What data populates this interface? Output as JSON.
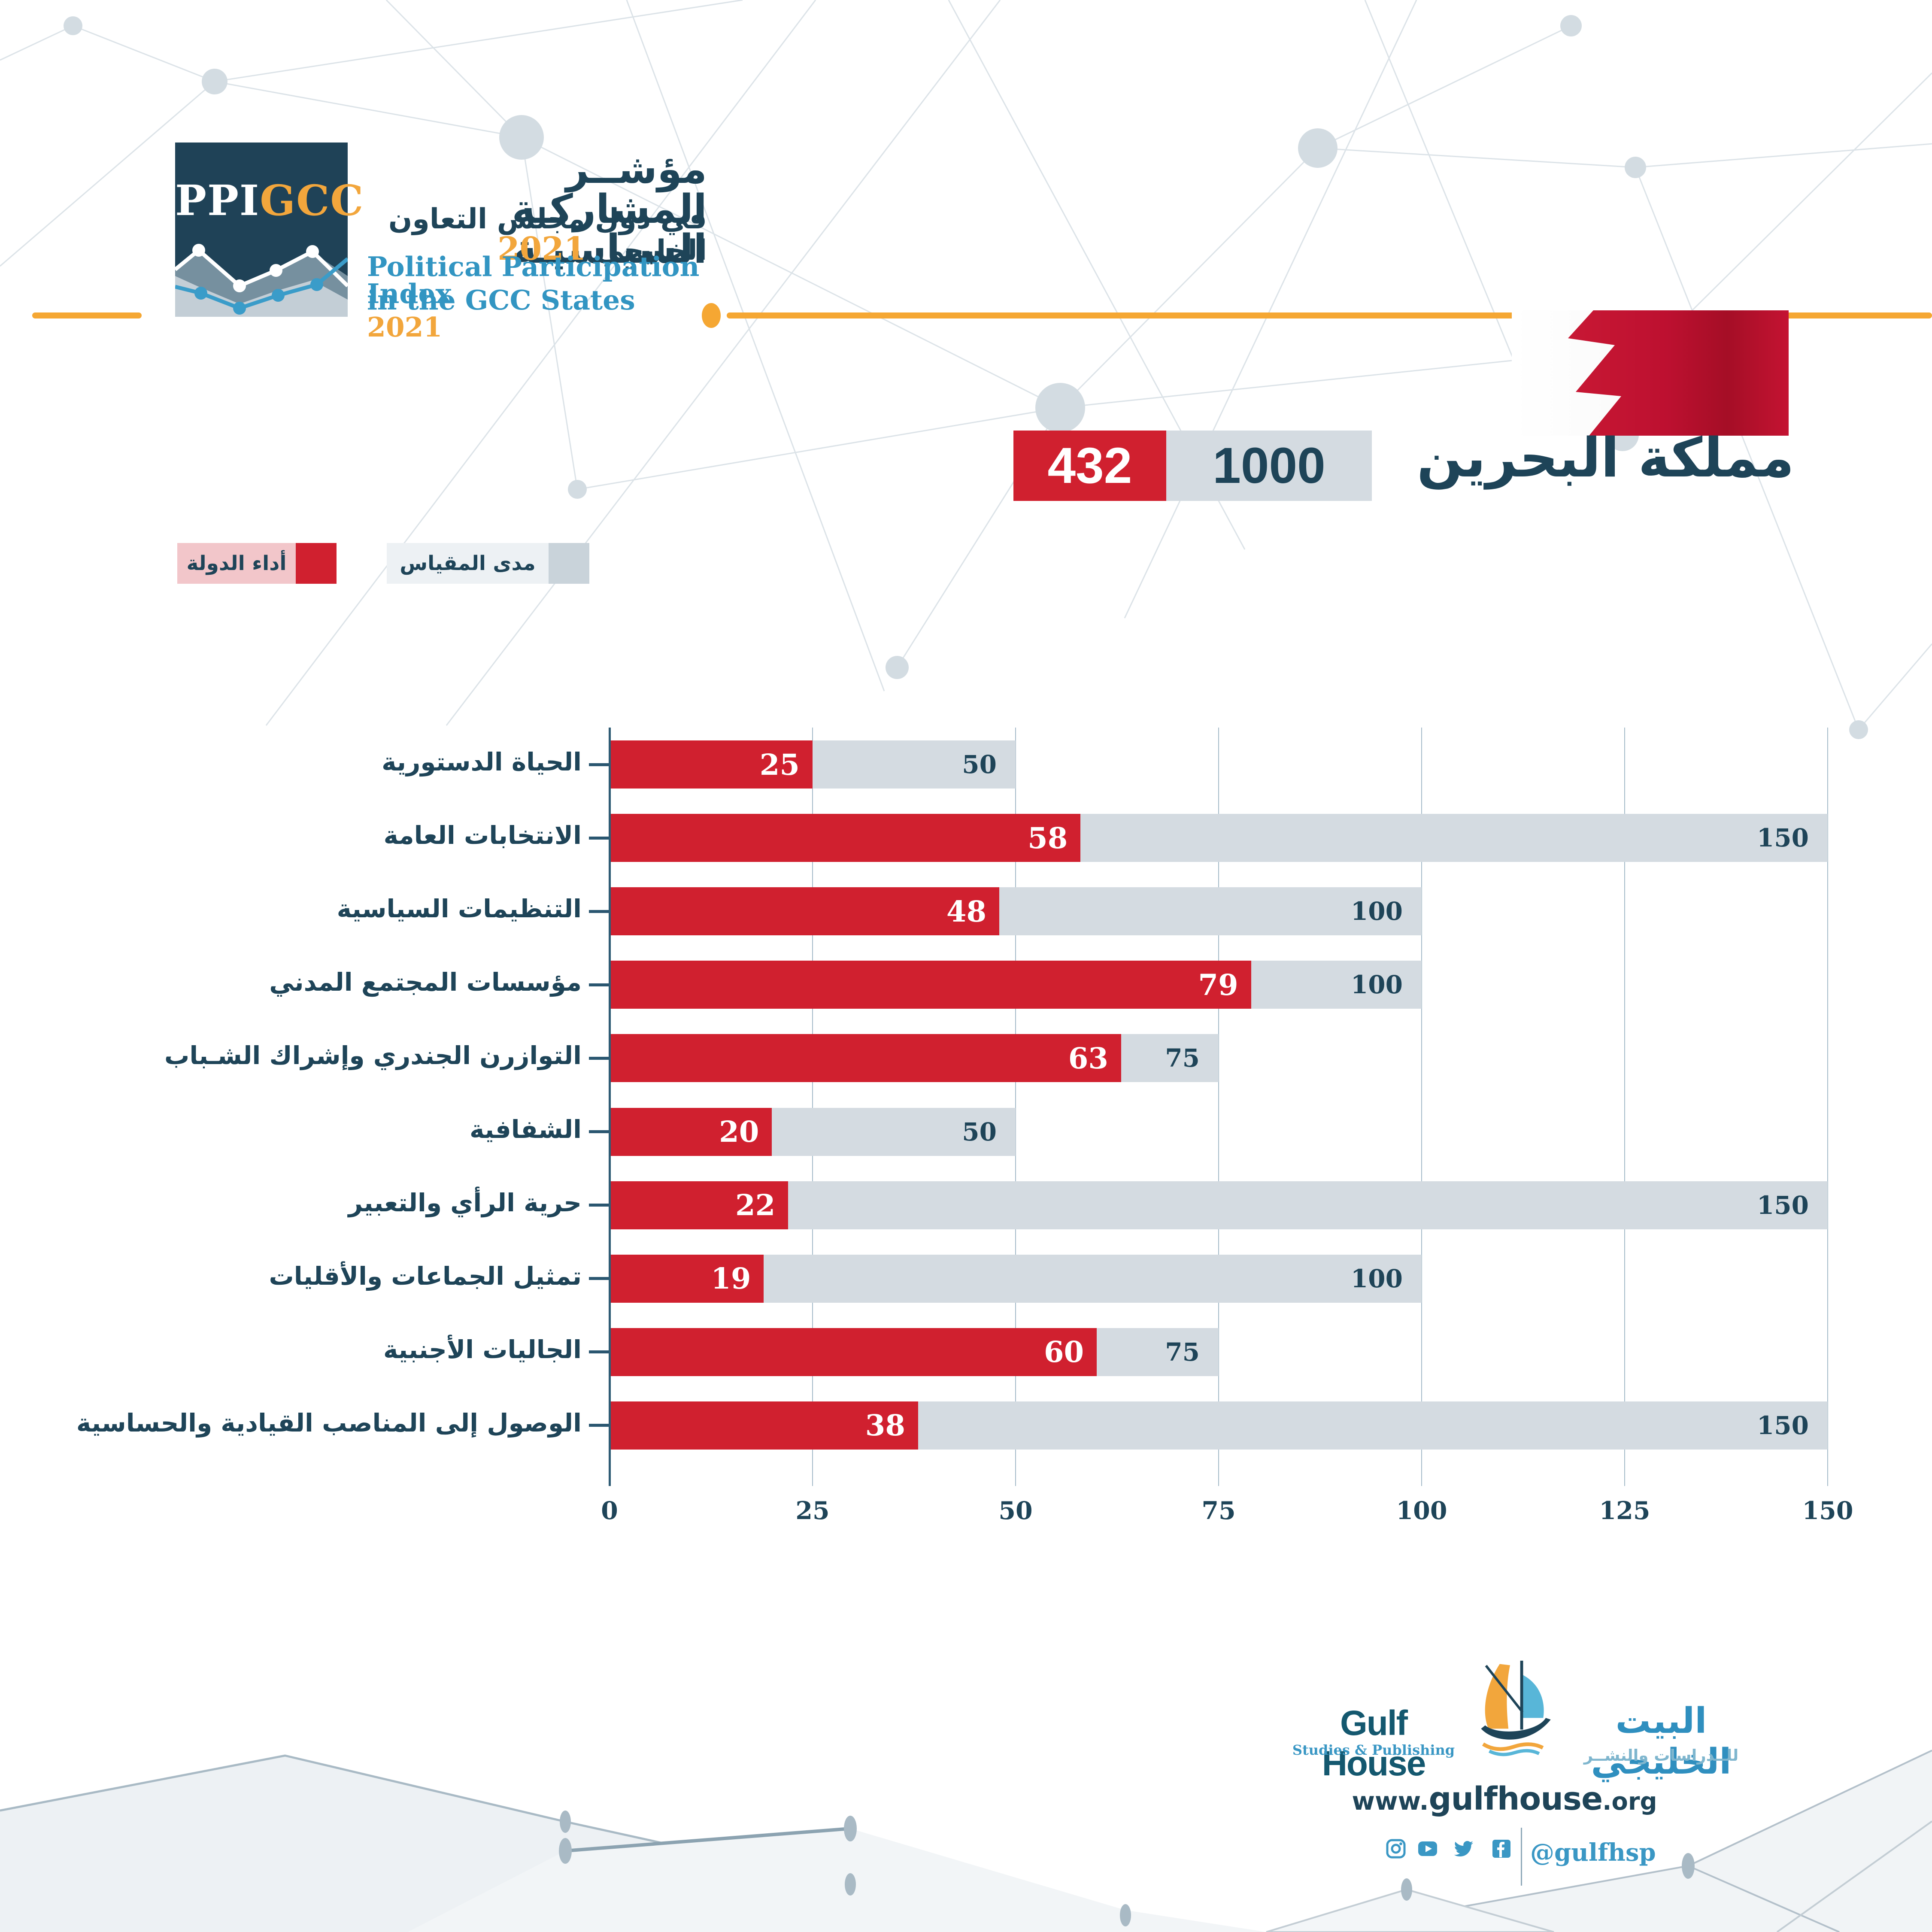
{
  "header": {
    "logo_ppi": "PPI",
    "logo_gcc": "GCC",
    "title_ar_line1": "مؤشــر المشاركـة السياسيـة",
    "title_ar_line2": "في دول مجلس التعاون الخليجي",
    "title_ar_year": "2021",
    "title_en_line1": "Political Participation Index",
    "title_en_line2": "in the GCC States",
    "title_en_year": "2021"
  },
  "country": {
    "name": "مملكة البحرين",
    "score": "432",
    "scale": "1000"
  },
  "legend": {
    "performance": "أداء الدولة",
    "scale": "مدى المقياس"
  },
  "chart_data": {
    "type": "bar",
    "orientation": "horizontal",
    "title": "مملكة البحرين — Political Participation Index 2021",
    "categories": [
      "الحياة الدستورية",
      "الانتخابات العامة",
      "التنظيمات السياسية",
      "مؤسسات المجتمع المدني",
      "التوازرن الجندري وإشراك الشـباب",
      "الشفافية",
      "حرية الرأي والتعبير",
      "تمثيل الجماعات والأقليات",
      "الجاليات الأجنبية",
      "الوصول إلى المناصب القيادية والحساسية"
    ],
    "series": [
      {
        "name": "أداء الدولة",
        "color": "#D0202F",
        "values": [
          25,
          58,
          48,
          79,
          63,
          20,
          22,
          19,
          60,
          38
        ]
      },
      {
        "name": "مدى المقياس",
        "color": "#D4DBE1",
        "values": [
          50,
          150,
          100,
          100,
          75,
          50,
          150,
          100,
          75,
          150
        ]
      }
    ],
    "xlabel": "",
    "ylabel": "",
    "xlim": [
      0,
      150
    ],
    "x_ticks": [
      0,
      25,
      50,
      75,
      100,
      125,
      150
    ],
    "grid": "vertical",
    "value_labels": "inside-end",
    "legend_position": "top-left"
  },
  "colors": {
    "red": "#D0202F",
    "gray_bar": "#D4DBE1",
    "navy": "#1E4458",
    "blue": "#3295C2",
    "orange": "#F5A733",
    "legend_pink": "#F2C6CA",
    "legend_gray_box": "#EDF1F4",
    "legend_gray_swatch": "#C9D3DA"
  },
  "footer": {
    "brand_en": "Gulf House",
    "brand_sub_en": "Studies & Publishing",
    "brand_ar": "البيت الخليجي",
    "brand_sub_ar": "للــدراسات والنشــر",
    "site_www": "www.",
    "site_name": "gulfhouse",
    "site_tld": ".org",
    "handle": "@gulfhsp",
    "social_icons": [
      "instagram",
      "youtube",
      "twitter",
      "facebook"
    ]
  }
}
